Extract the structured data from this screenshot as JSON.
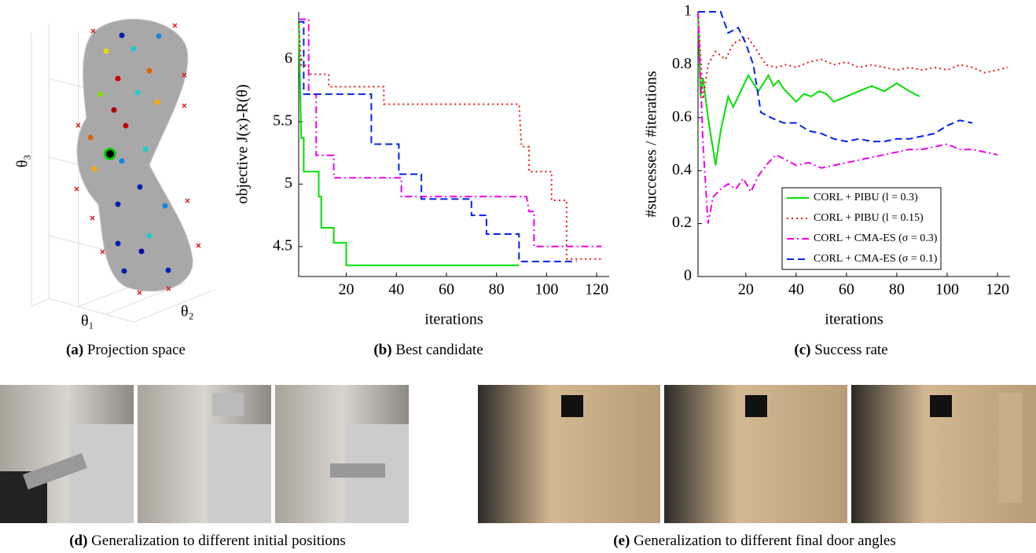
{
  "projection": {
    "axes": [
      "θ₁",
      "θ₂",
      "θ₃"
    ],
    "caption": {
      "label": "(a)",
      "text": "Projection space"
    }
  },
  "chart_data": [
    {
      "type": "line",
      "ylabel": "objective J(x)-R(θ)",
      "xlabel": "iterations",
      "caption": {
        "label": "(b)",
        "text": "Best candidate"
      },
      "xlim": [
        1,
        125
      ],
      "xticks": [
        20,
        40,
        60,
        80,
        100,
        120
      ],
      "ylim": [
        4.26,
        6.38
      ],
      "yticks": [
        4.5,
        5,
        5.5,
        6
      ],
      "series": [
        {
          "color": "#00e000",
          "dash": "solid",
          "x": [
            1,
            2,
            3,
            3,
            9,
            9,
            10,
            10,
            15,
            15,
            20,
            20,
            89
          ],
          "values": [
            6.32,
            5.37,
            5.37,
            5.1,
            5.1,
            4.9,
            4.9,
            4.65,
            4.65,
            4.53,
            4.53,
            4.35,
            4.35
          ]
        },
        {
          "color": "#ee1111",
          "dash": "dotted",
          "x": [
            1,
            2,
            5,
            5,
            13,
            13,
            35,
            35,
            89,
            90,
            93,
            93,
            102,
            102,
            108,
            108,
            122
          ],
          "values": [
            6.3,
            5.95,
            5.95,
            5.88,
            5.88,
            5.78,
            5.78,
            5.64,
            5.64,
            5.3,
            5.3,
            5.1,
            5.1,
            4.87,
            4.87,
            4.4,
            4.4
          ]
        },
        {
          "color": "#ee00ee",
          "dash": "dashdot",
          "x": [
            1,
            5,
            5,
            8,
            8,
            15,
            15,
            42,
            42,
            92,
            93,
            95,
            95,
            122
          ],
          "values": [
            6.32,
            6.32,
            5.72,
            5.72,
            5.23,
            5.23,
            5.05,
            5.05,
            4.9,
            4.9,
            4.78,
            4.78,
            4.5,
            4.5
          ]
        },
        {
          "color": "#0022ee",
          "dash": "dashed",
          "x": [
            1,
            3,
            3,
            30,
            30,
            41,
            41,
            50,
            50,
            70,
            70,
            76,
            76,
            89,
            89,
            112
          ],
          "values": [
            6.3,
            6.3,
            5.72,
            5.72,
            5.32,
            5.32,
            5.08,
            5.08,
            4.88,
            4.88,
            4.75,
            4.75,
            4.6,
            4.6,
            4.38,
            4.38
          ]
        }
      ]
    },
    {
      "type": "line",
      "ylabel": "#successes / #iterations",
      "xlabel": "iterations",
      "caption": {
        "label": "(c)",
        "text": "Success rate"
      },
      "xlim": [
        1,
        125
      ],
      "xticks": [
        20,
        40,
        60,
        80,
        100,
        120
      ],
      "ylim": [
        0,
        1
      ],
      "yticks": [
        0,
        0.2,
        0.4,
        0.6,
        0.8,
        1
      ],
      "legend": "lower right",
      "series": [
        {
          "name": "CORL + PIBU (l = 0.3)",
          "color": "#00e000",
          "dash": "solid",
          "x": [
            1,
            2,
            3,
            5,
            8,
            10,
            13,
            15,
            18,
            21,
            25,
            29,
            31,
            33,
            35,
            38,
            40,
            43,
            46,
            49,
            52,
            55,
            60,
            65,
            70,
            75,
            80,
            85,
            89
          ],
          "values": [
            1,
            0.68,
            0.75,
            0.6,
            0.42,
            0.55,
            0.68,
            0.64,
            0.7,
            0.76,
            0.7,
            0.76,
            0.72,
            0.74,
            0.71,
            0.68,
            0.66,
            0.69,
            0.68,
            0.7,
            0.69,
            0.66,
            0.68,
            0.7,
            0.72,
            0.7,
            0.73,
            0.7,
            0.68
          ]
        },
        {
          "name": "CORL + PIBU (l = 0.15)",
          "color": "#ee1111",
          "dash": "dotted",
          "x": [
            1,
            3,
            5,
            8,
            12,
            15,
            19,
            21,
            24,
            28,
            32,
            36,
            40,
            45,
            50,
            55,
            60,
            65,
            70,
            75,
            80,
            85,
            90,
            95,
            100,
            105,
            110,
            115,
            120,
            124
          ],
          "values": [
            1,
            0.67,
            0.8,
            0.85,
            0.82,
            0.88,
            0.9,
            0.9,
            0.86,
            0.8,
            0.79,
            0.8,
            0.79,
            0.81,
            0.82,
            0.8,
            0.81,
            0.79,
            0.8,
            0.79,
            0.78,
            0.79,
            0.78,
            0.79,
            0.78,
            0.8,
            0.79,
            0.77,
            0.78,
            0.79
          ]
        },
        {
          "name": "CORL + CMA-ES (σ = 0.3)",
          "color": "#ee00ee",
          "dash": "dashdot",
          "x": [
            1,
            3,
            5,
            7,
            10,
            13,
            16,
            19,
            22,
            25,
            28,
            32,
            36,
            40,
            45,
            50,
            55,
            60,
            65,
            70,
            75,
            80,
            85,
            90,
            95,
            100,
            105,
            110,
            115,
            120
          ],
          "values": [
            1,
            0.5,
            0.2,
            0.3,
            0.33,
            0.35,
            0.33,
            0.37,
            0.32,
            0.38,
            0.42,
            0.46,
            0.44,
            0.42,
            0.43,
            0.41,
            0.42,
            0.43,
            0.44,
            0.45,
            0.46,
            0.47,
            0.48,
            0.48,
            0.49,
            0.5,
            0.48,
            0.48,
            0.47,
            0.46
          ]
        },
        {
          "name": "CORL + CMA-ES (σ = 0.1)",
          "color": "#0022ee",
          "dash": "dashed",
          "x": [
            1,
            10,
            13,
            17,
            20,
            23,
            26,
            30,
            35,
            40,
            45,
            50,
            55,
            60,
            65,
            70,
            75,
            80,
            85,
            90,
            95,
            100,
            105,
            110
          ],
          "values": [
            1,
            1,
            0.92,
            0.94,
            0.88,
            0.8,
            0.62,
            0.6,
            0.58,
            0.58,
            0.55,
            0.54,
            0.52,
            0.51,
            0.52,
            0.51,
            0.51,
            0.52,
            0.52,
            0.53,
            0.54,
            0.57,
            0.59,
            0.58
          ]
        }
      ]
    }
  ],
  "photos": [
    {
      "caption": {
        "label": "(d)",
        "text": "Generalization to different initial positions"
      }
    },
    {
      "caption": {
        "label": "(e)",
        "text": "Generalization to different final door angles"
      }
    }
  ]
}
